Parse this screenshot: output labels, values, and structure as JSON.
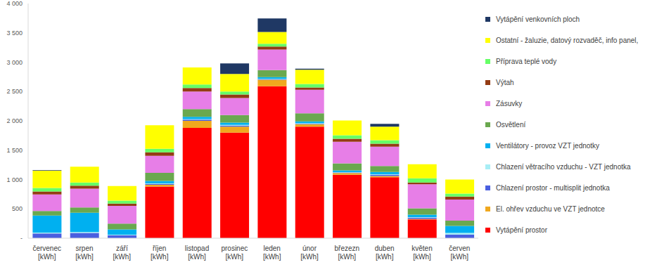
{
  "chart_data": {
    "type": "bar",
    "stacked": true,
    "grid": false,
    "legend": "right",
    "categories": [
      "červenec [kWh]",
      "srpen [kWh]",
      "září [kWh]",
      "říjen [kWh]",
      "listopad [kWh]",
      "prosinec [kWh]",
      "leden [kWh]",
      "únor [kWh]",
      "březezn [kWh]",
      "duben [kWh]",
      "květen [kWh]",
      "červen [kWh]"
    ],
    "ylim": [
      0,
      4000
    ],
    "yticks": [
      {
        "value": 0,
        "label": "-"
      },
      500,
      {
        "value": 1000,
        "label": "1 000"
      },
      {
        "value": 1500,
        "label": "1 500"
      },
      {
        "value": 2000,
        "label": "2 000"
      },
      {
        "value": 2500,
        "label": "2 500"
      },
      {
        "value": 3000,
        "label": "3 000"
      },
      {
        "value": 3500,
        "label": "3 500"
      },
      {
        "value": 4000,
        "label": "4 000"
      }
    ],
    "series": [
      {
        "name": "Vytápění prostor",
        "color": "#ff0000",
        "values": [
          0,
          0,
          0,
          880,
          1880,
          1800,
          2590,
          1900,
          1080,
          1040,
          320,
          0
        ]
      },
      {
        "name": "El. ohřev vzduchu ve VZT jednotce",
        "color": "#f0a81e",
        "values": [
          0,
          0,
          0,
          30,
          120,
          100,
          110,
          40,
          30,
          20,
          10,
          0
        ]
      },
      {
        "name": "Chlazení prostor - multisplit jednotka",
        "color": "#4a5fe0",
        "values": [
          80,
          90,
          50,
          15,
          20,
          20,
          10,
          10,
          10,
          20,
          20,
          60
        ]
      },
      {
        "name": "Chlazení větracího vzduchu - VZT jednotka",
        "color": "#a8eef5",
        "values": [
          15,
          15,
          10,
          10,
          10,
          10,
          5,
          10,
          5,
          10,
          10,
          30
        ]
      },
      {
        "name": "Ventilátory - provoz VZT jednotky",
        "color": "#00b0f0",
        "values": [
          290,
          330,
          90,
          40,
          40,
          40,
          30,
          30,
          30,
          40,
          40,
          120
        ]
      },
      {
        "name": "Osvětlení",
        "color": "#6aa84f",
        "values": [
          80,
          90,
          100,
          140,
          130,
          130,
          120,
          140,
          120,
          100,
          110,
          90
        ]
      },
      {
        "name": "Zásuvky",
        "color": "#e77ee7",
        "values": [
          280,
          320,
          300,
          290,
          300,
          290,
          350,
          400,
          370,
          330,
          410,
          360
        ]
      },
      {
        "name": "Výtah",
        "color": "#943c14",
        "values": [
          50,
          50,
          40,
          60,
          60,
          60,
          50,
          40,
          50,
          50,
          30,
          50
        ]
      },
      {
        "name": "Příprava teplé vody",
        "color": "#66ff66",
        "values": [
          60,
          55,
          50,
          60,
          60,
          50,
          50,
          60,
          60,
          60,
          70,
          50
        ]
      },
      {
        "name": "Ostatní - žaluzie, datový rozvaděč, info panel,",
        "color": "#ffff00",
        "values": [
          295,
          270,
          250,
          400,
          290,
          300,
          200,
          240,
          250,
          230,
          240,
          240
        ]
      },
      {
        "name": "Vytápění venkovních ploch",
        "color": "#1f3864",
        "values": [
          10,
          0,
          0,
          0,
          0,
          180,
          230,
          20,
          0,
          50,
          0,
          0
        ]
      }
    ]
  }
}
